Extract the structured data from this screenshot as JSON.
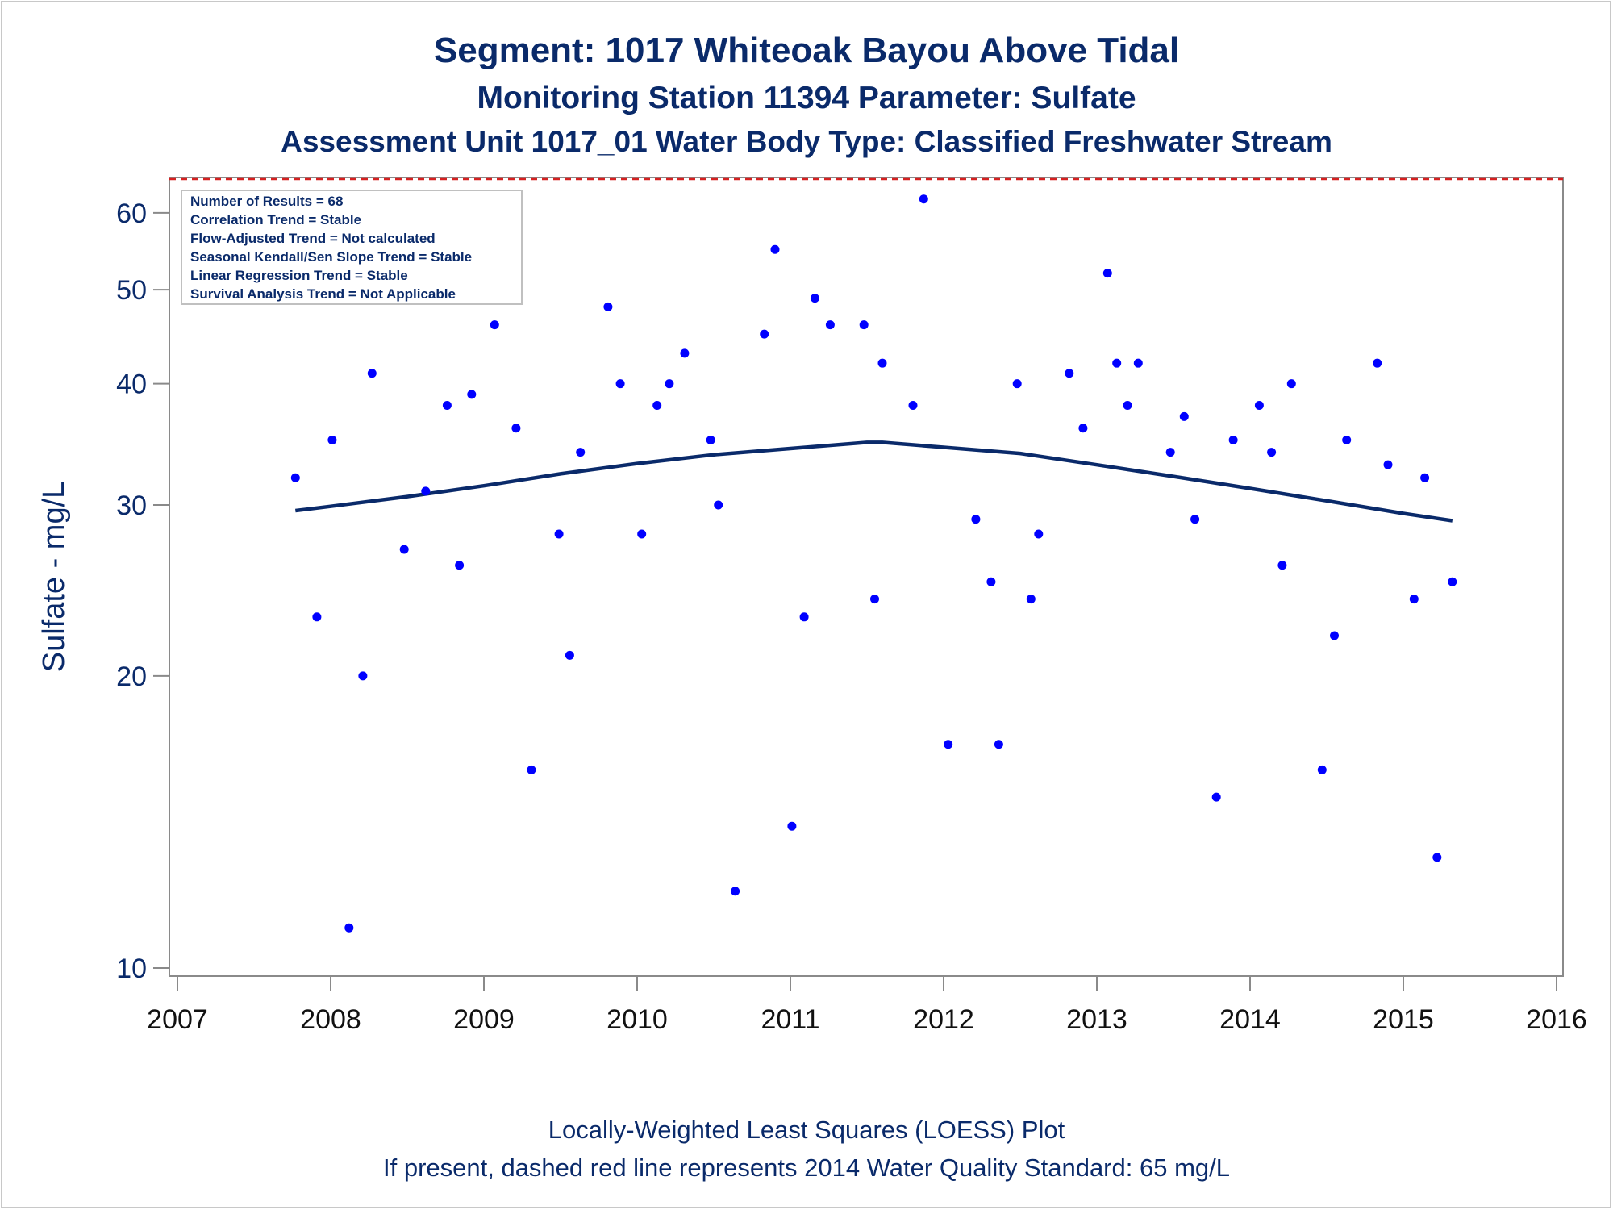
{
  "title": "Segment: 1017  Whiteoak Bayou Above Tidal",
  "subtitle": "Monitoring Station 11394 Parameter: Sulfate",
  "subtitle2": "Assessment Unit 1017_01   Water Body Type: Classified Freshwater Stream",
  "footnote1": "Locally-Weighted Least Squares (LOESS) Plot",
  "footnote2": "If present, dashed red line represents 2014 Water Quality Standard: 65    mg/L",
  "legend_box": [
    "Number of Results = 68",
    "Correlation Trend = Stable",
    "Flow-Adjusted Trend = Not calculated",
    "Seasonal Kendall/Sen Slope Trend = Stable",
    "Linear Regression Trend = Stable",
    "Survival Analysis Trend = Not Applicable"
  ],
  "colors": {
    "text": "#0a2a6a",
    "points": "#0000ff",
    "loess": "#0a2a6a",
    "standard": "#d62020",
    "axis": "#8a8a8a"
  },
  "chart_data": {
    "type": "scatter",
    "ylabel": "Sulfate - mg/L",
    "xlabel": "",
    "xlim": [
      2007,
      2016
    ],
    "ylim": [
      10,
      65
    ],
    "yscale": "log",
    "x_ticks": [
      "2007",
      "2008",
      "2009",
      "2010",
      "2011",
      "2012",
      "2013",
      "2014",
      "2015",
      "2016"
    ],
    "y_ticks": [
      10,
      20,
      30,
      40,
      50,
      60
    ],
    "standard": 65,
    "points": [
      [
        2007.77,
        32
      ],
      [
        2007.91,
        23
      ],
      [
        2008.01,
        35
      ],
      [
        2008.12,
        11
      ],
      [
        2008.21,
        20
      ],
      [
        2008.27,
        41
      ],
      [
        2008.48,
        27
      ],
      [
        2008.62,
        31
      ],
      [
        2008.76,
        38
      ],
      [
        2008.84,
        26
      ],
      [
        2008.92,
        39
      ],
      [
        2009.07,
        46
      ],
      [
        2009.21,
        36
      ],
      [
        2009.31,
        16
      ],
      [
        2009.49,
        28
      ],
      [
        2009.56,
        21
      ],
      [
        2009.63,
        34
      ],
      [
        2009.81,
        48
      ],
      [
        2009.89,
        40
      ],
      [
        2010.03,
        28
      ],
      [
        2010.13,
        38
      ],
      [
        2010.21,
        40
      ],
      [
        2010.31,
        43
      ],
      [
        2010.48,
        35
      ],
      [
        2010.53,
        30
      ],
      [
        2010.64,
        12
      ],
      [
        2010.83,
        45
      ],
      [
        2010.9,
        55
      ],
      [
        2011.01,
        14
      ],
      [
        2011.09,
        23
      ],
      [
        2011.16,
        49
      ],
      [
        2011.26,
        46
      ],
      [
        2011.48,
        46
      ],
      [
        2011.55,
        24
      ],
      [
        2011.6,
        42
      ],
      [
        2011.8,
        38
      ],
      [
        2011.87,
        62
      ],
      [
        2012.03,
        17
      ],
      [
        2012.21,
        29
      ],
      [
        2012.31,
        25
      ],
      [
        2012.36,
        17
      ],
      [
        2012.48,
        40
      ],
      [
        2012.57,
        24
      ],
      [
        2012.62,
        28
      ],
      [
        2012.82,
        41
      ],
      [
        2012.91,
        36
      ],
      [
        2013.07,
        52
      ],
      [
        2013.13,
        42
      ],
      [
        2013.2,
        38
      ],
      [
        2013.27,
        42
      ],
      [
        2013.48,
        34
      ],
      [
        2013.57,
        37
      ],
      [
        2013.64,
        29
      ],
      [
        2013.78,
        15
      ],
      [
        2013.89,
        35
      ],
      [
        2014.06,
        38
      ],
      [
        2014.14,
        34
      ],
      [
        2014.21,
        26
      ],
      [
        2014.27,
        40
      ],
      [
        2014.47,
        16
      ],
      [
        2014.55,
        22
      ],
      [
        2014.63,
        35
      ],
      [
        2014.83,
        42
      ],
      [
        2014.9,
        33
      ],
      [
        2015.07,
        24
      ],
      [
        2015.14,
        32
      ],
      [
        2015.22,
        13
      ],
      [
        2015.32,
        25
      ]
    ],
    "loess": [
      [
        2007.77,
        29.6
      ],
      [
        2008.0,
        29.9
      ],
      [
        2008.5,
        30.6
      ],
      [
        2009.0,
        31.4
      ],
      [
        2009.5,
        32.3
      ],
      [
        2010.0,
        33.1
      ],
      [
        2010.5,
        33.8
      ],
      [
        2011.0,
        34.3
      ],
      [
        2011.5,
        34.8
      ],
      [
        2011.6,
        34.8
      ],
      [
        2012.0,
        34.4
      ],
      [
        2012.5,
        33.9
      ],
      [
        2013.0,
        33.0
      ],
      [
        2013.5,
        32.1
      ],
      [
        2014.0,
        31.2
      ],
      [
        2014.5,
        30.3
      ],
      [
        2015.0,
        29.4
      ],
      [
        2015.32,
        28.9
      ]
    ]
  }
}
